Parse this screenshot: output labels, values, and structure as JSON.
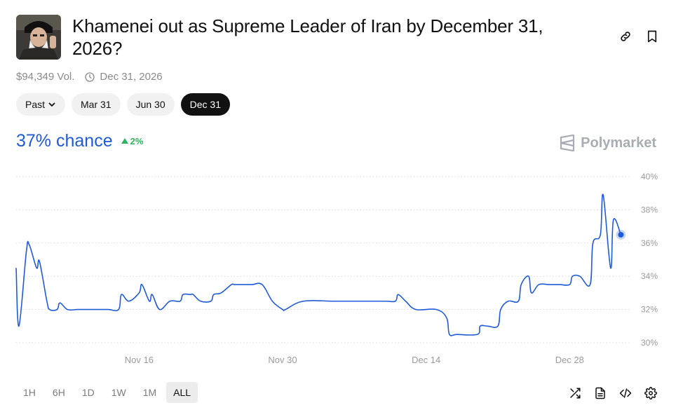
{
  "market": {
    "title": "Khamenei out as Supreme Leader of Iran by December 31, 2026?",
    "volume": "$94,349 Vol.",
    "end_date": "Dec 31, 2026"
  },
  "date_pills": [
    {
      "label": "Past",
      "has_chevron": true,
      "active": false
    },
    {
      "label": "Mar 31",
      "active": false
    },
    {
      "label": "Jun 30",
      "active": false
    },
    {
      "label": "Dec 31",
      "active": true
    }
  ],
  "outcome": {
    "chance": "37% chance",
    "change": "2%",
    "change_direction": "up"
  },
  "brand": {
    "name": "Polymarket"
  },
  "time_ranges": [
    {
      "label": "1H",
      "active": false
    },
    {
      "label": "6H",
      "active": false
    },
    {
      "label": "1D",
      "active": false
    },
    {
      "label": "1W",
      "active": false
    },
    {
      "label": "1M",
      "active": false
    },
    {
      "label": "ALL",
      "active": true
    }
  ],
  "top_icons": [
    "link-icon",
    "bookmark-icon"
  ],
  "bottom_icons": [
    "shuffle-icon",
    "document-icon",
    "embed-code-icon",
    "settings-icon"
  ],
  "colors": {
    "line": "#1f5bd8",
    "up": "#2fb35e",
    "active_pill": "#111111"
  },
  "chart_data": {
    "type": "line",
    "title": "",
    "xlabel": "",
    "ylabel": "",
    "x_ticks": [
      "Nov 16",
      "Nov 30",
      "Dec 14",
      "Dec 28"
    ],
    "y_ticks": [
      "30%",
      "32%",
      "34%",
      "36%",
      "38%",
      "40%"
    ],
    "ylim": [
      30,
      40
    ],
    "grid": true,
    "grid_style": "dotted",
    "x_day_range": [
      "Nov 4",
      "Jan 3"
    ],
    "series": [
      {
        "name": "",
        "x": [
          "Nov 4",
          "Nov 4",
          "Nov 5",
          "Nov 5",
          "Nov 6",
          "Nov 6",
          "Nov 7",
          "Nov 7",
          "Nov 8",
          "Nov 8",
          "Nov 9",
          "Nov 10",
          "Nov 11",
          "Nov 12",
          "Nov 13",
          "Nov 14",
          "Nov 14",
          "Nov 15",
          "Nov 16",
          "Nov 16",
          "Nov 17",
          "Nov 17",
          "Nov 18",
          "Nov 19",
          "Nov 20",
          "Nov 20",
          "Nov 21",
          "Nov 21",
          "Nov 22",
          "Nov 23",
          "Nov 23",
          "Nov 24",
          "Nov 25",
          "Nov 25",
          "Nov 26",
          "Nov 27",
          "Nov 28",
          "Nov 29",
          "Nov 30",
          "Nov 30",
          "Dec 2",
          "Dec 5",
          "Dec 8",
          "Dec 10",
          "Dec 11",
          "Dec 11",
          "Dec 12",
          "Dec 13",
          "Dec 15",
          "Dec 16",
          "Dec 16",
          "Dec 17",
          "Dec 19",
          "Dec 19",
          "Dec 20",
          "Dec 21",
          "Dec 21",
          "Dec 22",
          "Dec 23",
          "Dec 23",
          "Dec 24",
          "Dec 24",
          "Dec 25",
          "Dec 26",
          "Dec 27",
          "Dec 28",
          "Dec 28",
          "Dec 29",
          "Dec 30",
          "Dec 30",
          "Dec 31",
          "Dec 31",
          "Jan 1",
          "Jan 1",
          "Jan 2"
        ],
        "values": [
          34.5,
          31.0,
          35.5,
          35.9,
          34.5,
          34.9,
          32.5,
          32.0,
          32.0,
          32.4,
          32.0,
          32.0,
          32.0,
          32.0,
          32.0,
          32.0,
          32.9,
          32.5,
          33.0,
          33.5,
          32.5,
          32.9,
          32.0,
          32.5,
          32.5,
          32.9,
          32.9,
          32.9,
          32.5,
          32.5,
          32.9,
          33.0,
          33.5,
          33.5,
          33.5,
          33.5,
          33.5,
          32.5,
          32.0,
          32.0,
          32.5,
          32.5,
          32.5,
          32.5,
          32.5,
          32.9,
          32.5,
          32.0,
          32.0,
          31.5,
          30.5,
          30.5,
          30.5,
          31.0,
          31.0,
          31.0,
          32.0,
          32.5,
          32.5,
          33.5,
          34.0,
          33.0,
          33.5,
          33.5,
          33.5,
          33.5,
          34.0,
          34.0,
          33.5,
          36.0,
          36.5,
          38.9,
          34.5,
          37.4,
          36.5
        ]
      }
    ],
    "current_value": 36.5
  }
}
